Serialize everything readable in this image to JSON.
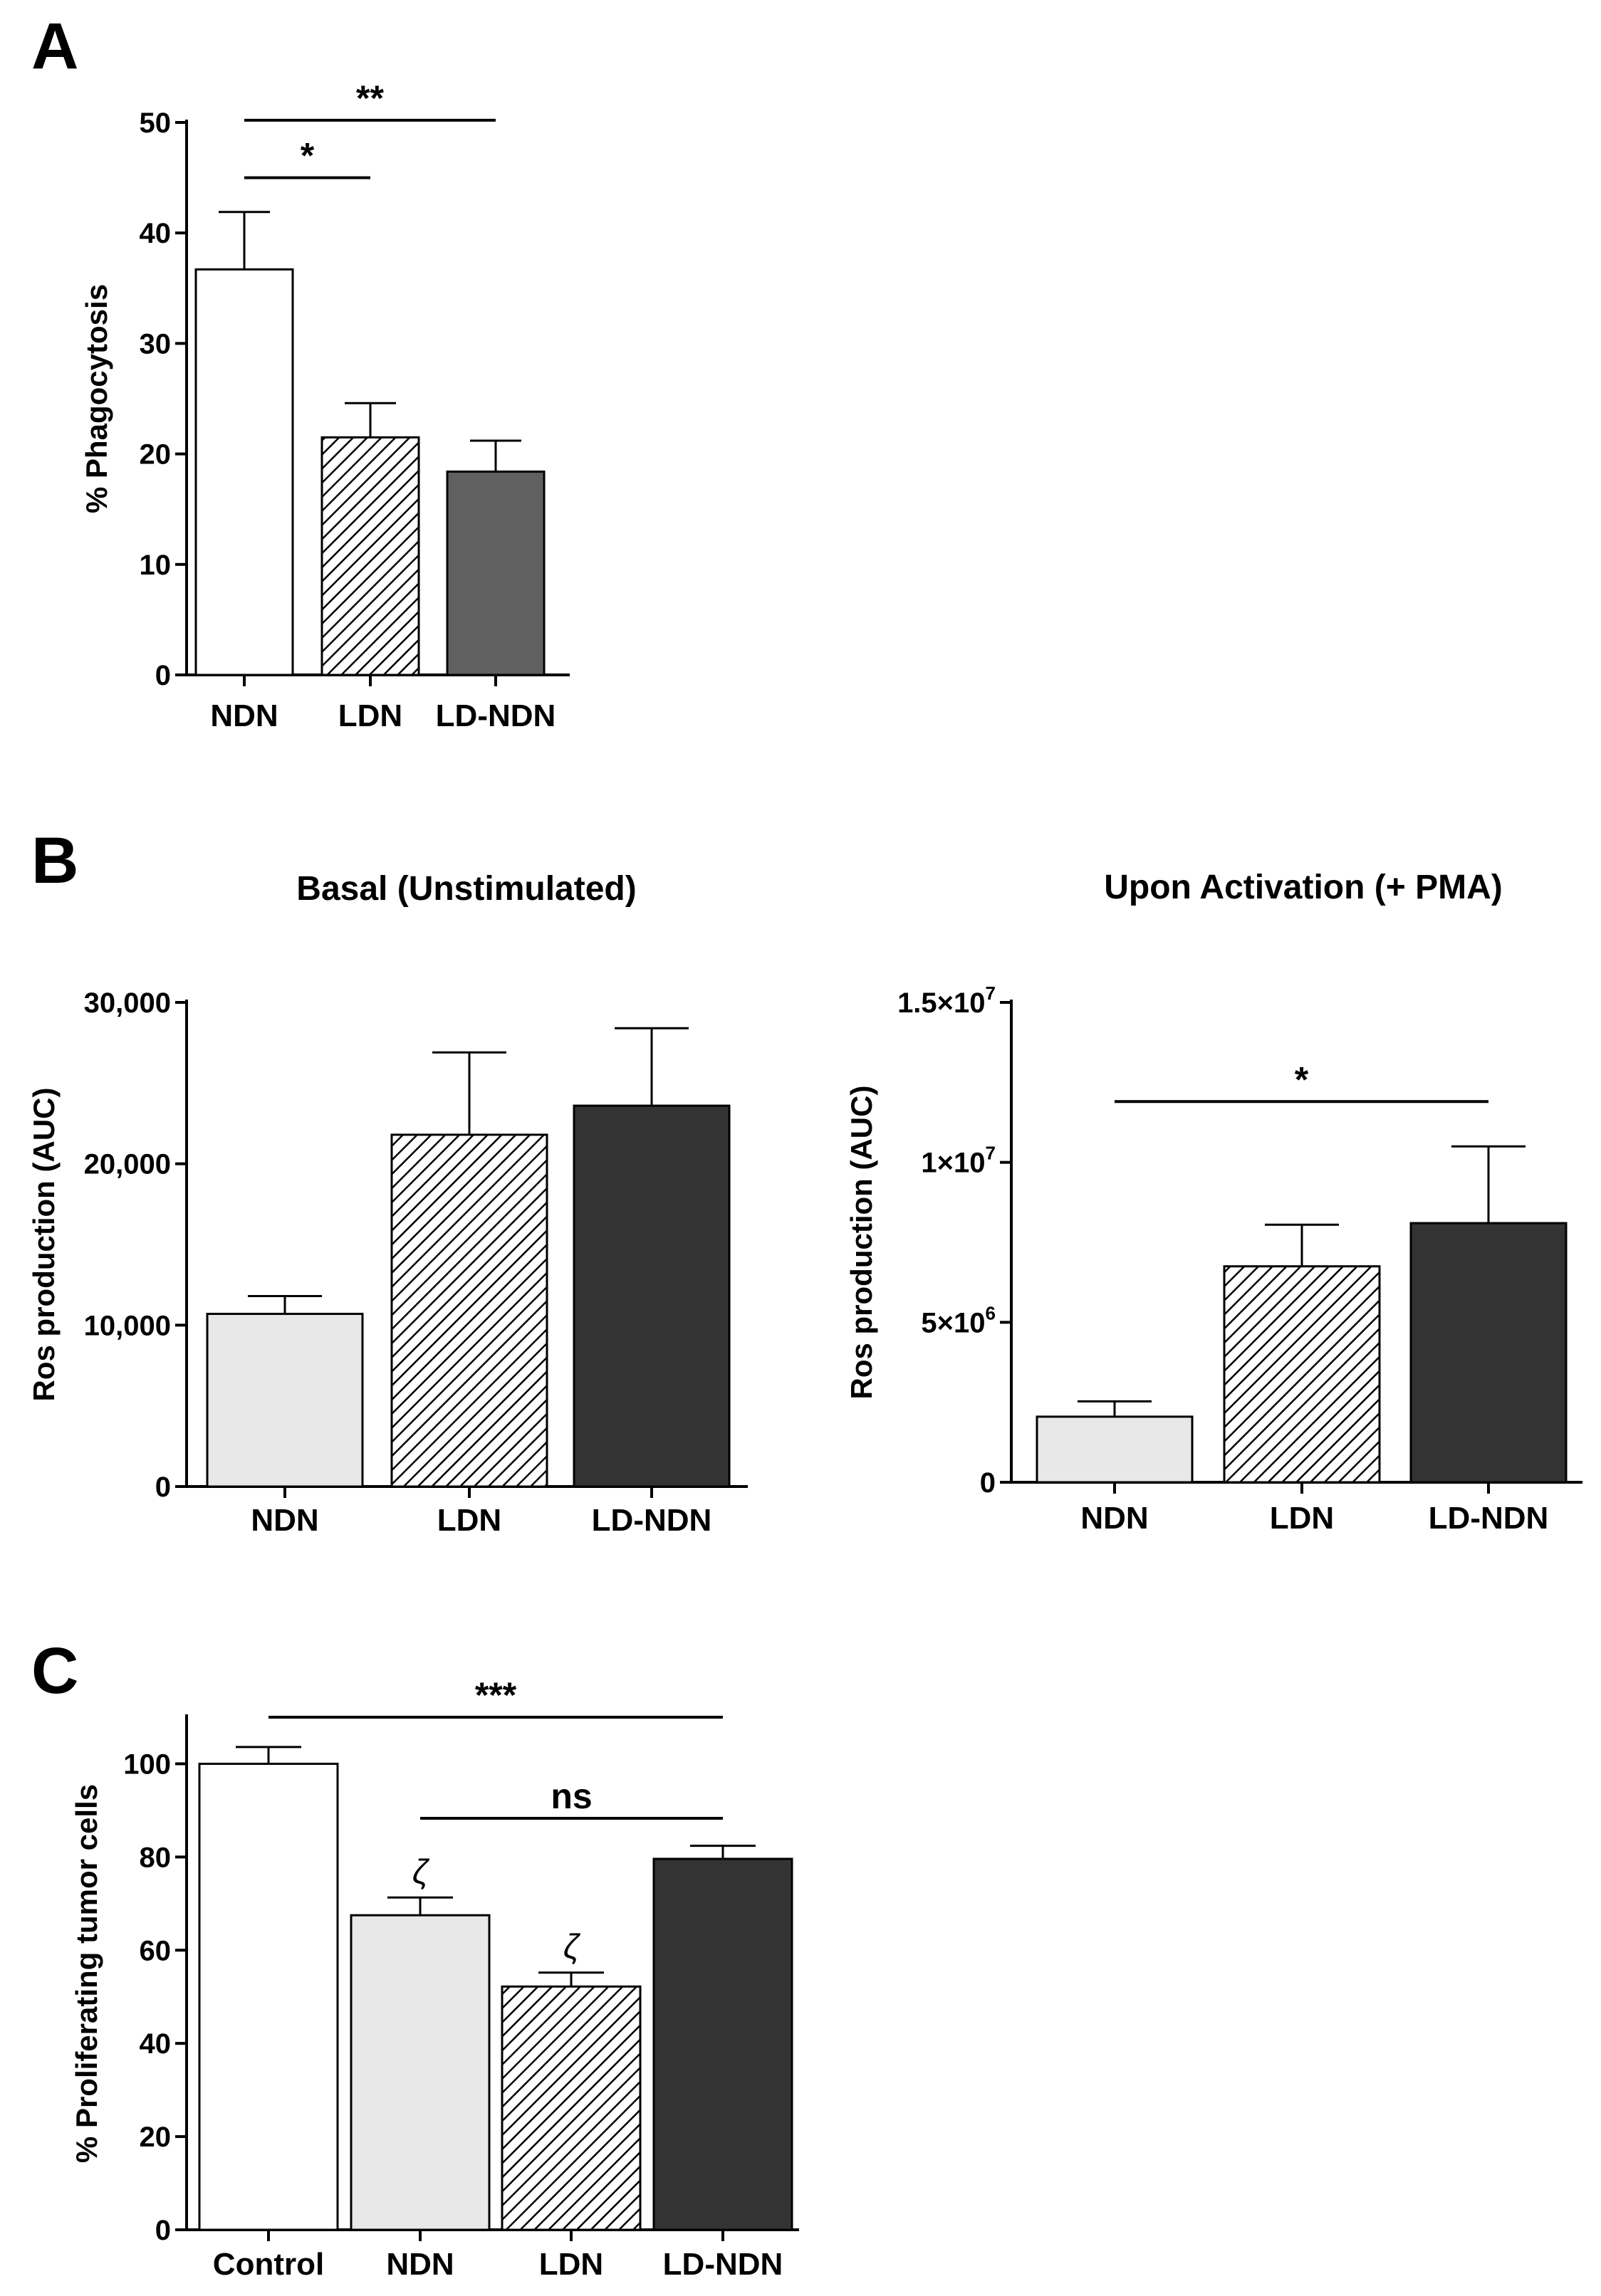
{
  "panels": {
    "A": "A",
    "B": "B",
    "C": "C"
  },
  "colors": {
    "axis": "#000000",
    "white": "#ffffff",
    "light_gray": "#e8e8e8",
    "mid_gray": "#606060",
    "dark_gray": "#333333",
    "hatch": "#000000"
  },
  "chart_data": [
    {
      "id": "A",
      "type": "bar",
      "title": "",
      "xlabel": "",
      "ylabel": "% Phagocytosis",
      "ylim": [
        0,
        50
      ],
      "yticks": [
        0,
        10,
        20,
        30,
        40,
        50
      ],
      "ytick_labels": [
        "0",
        "10",
        "20",
        "30",
        "40",
        "50"
      ],
      "categories": [
        "NDN",
        "LDN",
        "LD-NDN"
      ],
      "values": [
        36.7,
        21.5,
        18.4
      ],
      "errors": [
        5.2,
        3.1,
        2.8
      ],
      "fills": [
        "white",
        "hatch",
        "mid_gray"
      ],
      "annotations": [
        {
          "label": "*",
          "from": 0,
          "to": 1,
          "y": 45.0
        },
        {
          "label": "**",
          "from": 0,
          "to": 2,
          "y": 50.2
        }
      ]
    },
    {
      "id": "B-basal",
      "type": "bar",
      "title": "Basal (Unstimulated)",
      "xlabel": "",
      "ylabel": "Ros production  (AUC)",
      "ylim": [
        0,
        30000
      ],
      "yticks": [
        0,
        10000,
        20000,
        30000
      ],
      "ytick_labels": [
        "0",
        "10,000",
        "20,000",
        "30,000"
      ],
      "categories": [
        "NDN",
        "LDN",
        "LD-NDN"
      ],
      "values": [
        10700,
        21800,
        23600
      ],
      "errors": [
        1100,
        5100,
        4800
      ],
      "fills": [
        "light_gray",
        "hatch",
        "dark_gray"
      ],
      "annotations": []
    },
    {
      "id": "B-pma",
      "type": "bar",
      "title": "Upon Activation (+ PMA)",
      "xlabel": "",
      "ylabel": "Ros production  (AUC)",
      "ylim": [
        0,
        15000000
      ],
      "yticks": [
        0,
        5000000,
        10000000,
        15000000
      ],
      "ytick_labels": [
        {
          "main": "0",
          "sup": ""
        },
        {
          "main": "5×10",
          "sup": "6"
        },
        {
          "main": "1×10",
          "sup": "7"
        },
        {
          "main": "1.5×10",
          "sup": "7"
        }
      ],
      "categories": [
        "NDN",
        "LDN",
        "LD-NDN"
      ],
      "values": [
        2050000,
        6750000,
        8100000
      ],
      "errors": [
        480000,
        1300000,
        2400000
      ],
      "fills": [
        "light_gray",
        "hatch",
        "dark_gray"
      ],
      "annotations": [
        {
          "label": "*",
          "from": 0,
          "to": 2,
          "y": 11900000
        }
      ]
    },
    {
      "id": "C",
      "type": "bar",
      "title": "",
      "xlabel": "",
      "ylabel": "% Proliferating tumor cells",
      "ylim": [
        0,
        110
      ],
      "yticks": [
        0,
        20,
        40,
        60,
        80,
        100
      ],
      "ytick_labels": [
        "0",
        "20",
        "40",
        "60",
        "80",
        "100"
      ],
      "categories": [
        "Control",
        "NDN",
        "LDN",
        "LD-NDN"
      ],
      "values": [
        100,
        67.5,
        52.2,
        79.6
      ],
      "errors": [
        3.6,
        3.8,
        3.0,
        2.8
      ],
      "fills": [
        "white",
        "light_gray",
        "hatch",
        "dark_gray"
      ],
      "bar_marks": [
        "",
        "ζ",
        "ζ",
        ""
      ],
      "annotations": [
        {
          "label": "***",
          "from": 0,
          "to": 3,
          "y": 110
        },
        {
          "label": "ns",
          "from": 1,
          "to": 3,
          "y": 88.3
        }
      ]
    }
  ]
}
